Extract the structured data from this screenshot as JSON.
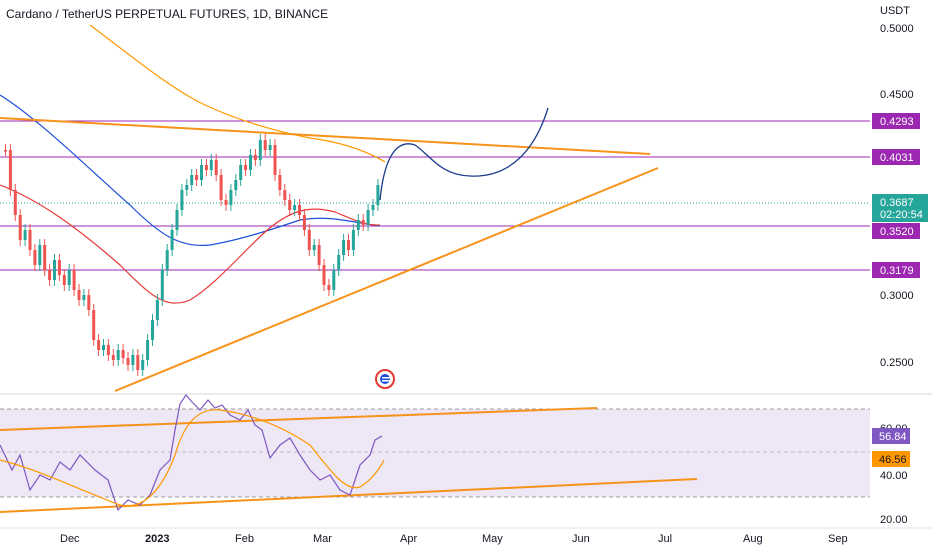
{
  "title": "Cardano / TetherUS PERPETUAL FUTURES, 1D, BINANCE",
  "currency": "USDT",
  "chart_data": [
    {
      "type": "candlestick",
      "title": "Cardano / TetherUS PERPETUAL FUTURES, 1D, BINANCE",
      "unit": "USDT",
      "x_ticks": [
        "Dec",
        "2023",
        "Feb",
        "Mar",
        "Apr",
        "May",
        "Jun",
        "Jul",
        "Aug",
        "Sep"
      ],
      "y_ticks": [
        "0.5000",
        "0.4500",
        "0.3000",
        "0.2500"
      ],
      "y_range": [
        0.235,
        0.51
      ],
      "last_price": "0.3687",
      "countdown": "02:20:54",
      "horizontal_levels": [
        "0.4293",
        "0.4031",
        "0.3520",
        "0.3179"
      ],
      "colors": {
        "up": "#26a69a",
        "down": "#ef5350",
        "level": "#9c27b0",
        "trend": "#f7931a",
        "ma_fast": "#e53935",
        "ma_slow": "#1e4fd8",
        "ma_long": "#ff9800",
        "projection": "#1a3a8c"
      }
    },
    {
      "type": "line",
      "title": "",
      "y_ticks": [
        "60.00",
        "40.00",
        "20.00"
      ],
      "rsi_value": "56.84",
      "rsi_ma_value": "46.56",
      "colors": {
        "rsi": "#7e57c2",
        "rsi_ma": "#ff9800",
        "band": "#ede7f6"
      }
    }
  ]
}
